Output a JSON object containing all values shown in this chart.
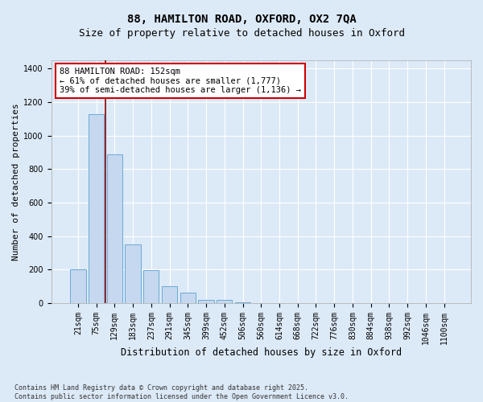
{
  "title_line1": "88, HAMILTON ROAD, OXFORD, OX2 7QA",
  "title_line2": "Size of property relative to detached houses in Oxford",
  "xlabel": "Distribution of detached houses by size in Oxford",
  "ylabel": "Number of detached properties",
  "bar_categories": [
    "21sqm",
    "75sqm",
    "129sqm",
    "183sqm",
    "237sqm",
    "291sqm",
    "345sqm",
    "399sqm",
    "452sqm",
    "506sqm",
    "560sqm",
    "614sqm",
    "668sqm",
    "722sqm",
    "776sqm",
    "830sqm",
    "884sqm",
    "938sqm",
    "992sqm",
    "1046sqm",
    "1100sqm"
  ],
  "bar_values": [
    200,
    1130,
    890,
    350,
    195,
    100,
    60,
    20,
    20,
    5,
    0,
    0,
    0,
    0,
    0,
    0,
    0,
    0,
    0,
    0,
    0
  ],
  "bar_color": "#c5d8f0",
  "bar_edge_color": "#6aaad4",
  "vline_color": "#8b0000",
  "vline_x": 1.5,
  "annotation_text": "88 HAMILTON ROAD: 152sqm\n← 61% of detached houses are smaller (1,777)\n39% of semi-detached houses are larger (1,136) →",
  "annotation_box_facecolor": "#ffffff",
  "annotation_box_edgecolor": "#cc0000",
  "ylim": [
    0,
    1450
  ],
  "yticks": [
    0,
    200,
    400,
    600,
    800,
    1000,
    1200,
    1400
  ],
  "background_color": "#dce9f7",
  "grid_color": "#ffffff",
  "footer_line1": "Contains HM Land Registry data © Crown copyright and database right 2025.",
  "footer_line2": "Contains public sector information licensed under the Open Government Licence v3.0.",
  "title1_fontsize": 10,
  "title2_fontsize": 9,
  "xlabel_fontsize": 8.5,
  "ylabel_fontsize": 8,
  "tick_fontsize": 7,
  "annotation_fontsize": 7.5,
  "footer_fontsize": 6
}
